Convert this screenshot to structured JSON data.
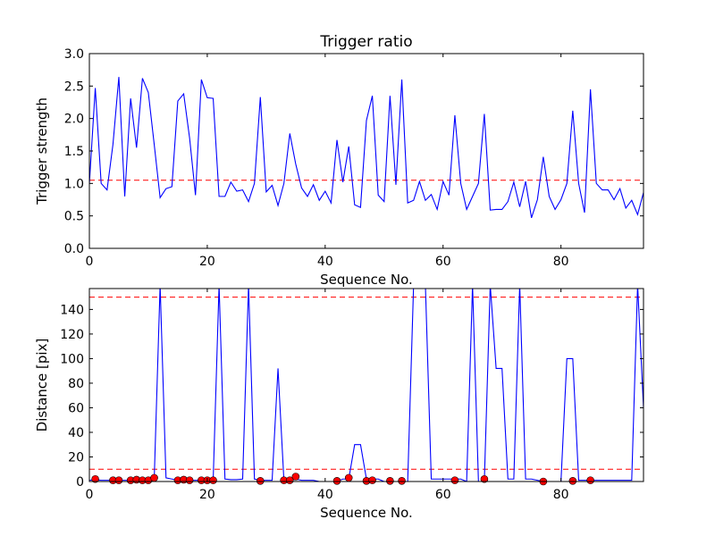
{
  "chart_data": [
    {
      "type": "line",
      "title": "Trigger ratio",
      "xlabel": "Sequence No.",
      "ylabel": "Trigger strength",
      "xlim": [
        0,
        94
      ],
      "ylim": [
        0,
        3.0
      ],
      "xticks": [
        0,
        20,
        40,
        60,
        80
      ],
      "xtick_labels": [
        "0",
        "20",
        "40",
        "60",
        "80"
      ],
      "yticks": [
        0,
        0.5,
        1.0,
        1.5,
        2.0,
        2.5,
        3.0
      ],
      "ytick_labels": [
        "0.0",
        "0.5",
        "1.0",
        "1.5",
        "2.0",
        "2.5",
        "3.0"
      ],
      "grid": false,
      "series": [
        {
          "color": "#0000ff",
          "x": [
            0,
            1,
            2,
            3,
            4,
            5,
            6,
            7,
            8,
            9,
            10,
            11,
            12,
            13,
            14,
            15,
            16,
            17,
            18,
            19,
            20,
            21,
            22,
            23,
            24,
            25,
            26,
            27,
            28,
            29,
            30,
            31,
            32,
            33,
            34,
            35,
            36,
            37,
            38,
            39,
            40,
            41,
            42,
            43,
            44,
            45,
            46,
            47,
            48,
            49,
            50,
            51,
            52,
            53,
            54,
            55,
            56,
            57,
            58,
            59,
            60,
            61,
            62,
            63,
            64,
            65,
            66,
            67,
            68,
            69,
            70,
            71,
            72,
            73,
            74,
            75,
            76,
            77,
            78,
            79,
            80,
            81,
            82,
            83,
            84,
            85,
            86,
            87,
            88,
            89,
            90,
            91,
            92,
            93,
            94
          ],
          "y": [
            1.0,
            2.47,
            1.0,
            0.9,
            1.6,
            2.64,
            0.8,
            2.31,
            1.55,
            2.62,
            2.4,
            1.6,
            0.78,
            0.92,
            0.95,
            2.27,
            2.38,
            1.7,
            0.82,
            2.6,
            2.32,
            2.31,
            0.8,
            0.8,
            1.02,
            0.88,
            0.9,
            0.72,
            1.0,
            2.33,
            0.87,
            0.97,
            0.66,
            1.0,
            1.77,
            1.3,
            0.93,
            0.8,
            0.98,
            0.74,
            0.88,
            0.7,
            1.67,
            1.02,
            1.57,
            0.67,
            0.63,
            1.97,
            2.35,
            0.82,
            0.72,
            2.35,
            0.98,
            2.6,
            0.7,
            0.74,
            1.03,
            0.74,
            0.83,
            0.6,
            1.03,
            0.82,
            2.05,
            1.0,
            0.6,
            0.8,
            1.0,
            2.07,
            0.59,
            0.6,
            0.6,
            0.72,
            1.02,
            0.64,
            1.03,
            0.47,
            0.75,
            1.41,
            0.8,
            0.6,
            0.75,
            1.0,
            2.12,
            1.0,
            0.55,
            2.45,
            1.0,
            0.9,
            0.9,
            0.75,
            0.92,
            0.62,
            0.74,
            0.52,
            0.86
          ]
        }
      ],
      "reference_lines": [
        {
          "y": 1.05,
          "color": "#ff0000",
          "style": "dashed"
        }
      ]
    },
    {
      "type": "line",
      "title": "",
      "xlabel": "Sequence No.",
      "ylabel": "Distance [pix]",
      "xlim": [
        0,
        94
      ],
      "ylim": [
        0,
        157
      ],
      "xticks": [
        0,
        20,
        40,
        60,
        80
      ],
      "xtick_labels": [
        "0",
        "20",
        "40",
        "60",
        "80"
      ],
      "yticks": [
        0,
        20,
        40,
        60,
        80,
        100,
        120,
        140
      ],
      "ytick_labels": [
        "0",
        "20",
        "40",
        "60",
        "80",
        "100",
        "120",
        "140"
      ],
      "grid": false,
      "series": [
        {
          "color": "#0000ff",
          "x": [
            0,
            1,
            2,
            3,
            4,
            5,
            6,
            7,
            8,
            9,
            10,
            11,
            12,
            13,
            14,
            15,
            16,
            17,
            18,
            19,
            20,
            21,
            22,
            23,
            24,
            25,
            26,
            27,
            28,
            29,
            30,
            31,
            32,
            33,
            34,
            35,
            36,
            37,
            38,
            39,
            40,
            41,
            42,
            43,
            44,
            45,
            46,
            47,
            48,
            49,
            50,
            51,
            52,
            53,
            54,
            55,
            56,
            57,
            58,
            59,
            60,
            61,
            62,
            63,
            64,
            65,
            66,
            67,
            68,
            69,
            70,
            71,
            72,
            73,
            74,
            75,
            76,
            77,
            78,
            79,
            80,
            81,
            82,
            83,
            84,
            85,
            86,
            87,
            88,
            89,
            90,
            91,
            92,
            93,
            94
          ],
          "y": [
            1,
            1.5,
            1,
            1,
            1,
            1,
            1,
            1,
            1,
            1,
            1,
            2,
            160,
            3,
            2,
            1,
            1,
            1,
            1,
            1,
            1,
            1,
            160,
            2,
            1.5,
            1.5,
            2,
            160,
            2,
            1,
            1,
            1,
            92,
            1,
            1,
            2,
            1,
            1,
            1,
            0,
            0,
            0,
            0,
            2,
            2,
            30,
            30,
            2,
            2,
            2,
            0,
            0,
            0,
            0,
            0,
            160,
            160,
            160,
            2,
            2,
            2,
            2,
            2,
            2,
            0,
            160,
            0,
            0,
            160,
            92,
            92,
            2,
            2,
            160,
            2,
            2,
            1,
            0,
            0,
            0,
            0,
            100,
            100,
            1,
            1,
            1,
            1,
            1,
            1,
            1,
            1,
            1,
            1,
            160,
            60
          ]
        }
      ],
      "markers": {
        "color": "#ff0000",
        "x": [
          1,
          4,
          5,
          7,
          8,
          9,
          10,
          11,
          15,
          16,
          17,
          19,
          20,
          21,
          29,
          33,
          34,
          35,
          42,
          44,
          47,
          48,
          51,
          53,
          62,
          67,
          77,
          82,
          85
        ],
        "y": [
          2,
          1,
          1,
          1,
          1.5,
          1,
          1,
          3,
          1,
          1.5,
          1,
          1,
          1,
          1,
          0.5,
          1,
          1,
          4,
          0.5,
          3,
          0.5,
          1,
          0.5,
          0.5,
          1,
          2,
          0,
          0.5,
          1
        ]
      },
      "reference_lines": [
        {
          "y": 150,
          "color": "#ff0000",
          "style": "dashed"
        },
        {
          "y": 10,
          "color": "#ff0000",
          "style": "dashed"
        }
      ]
    }
  ]
}
